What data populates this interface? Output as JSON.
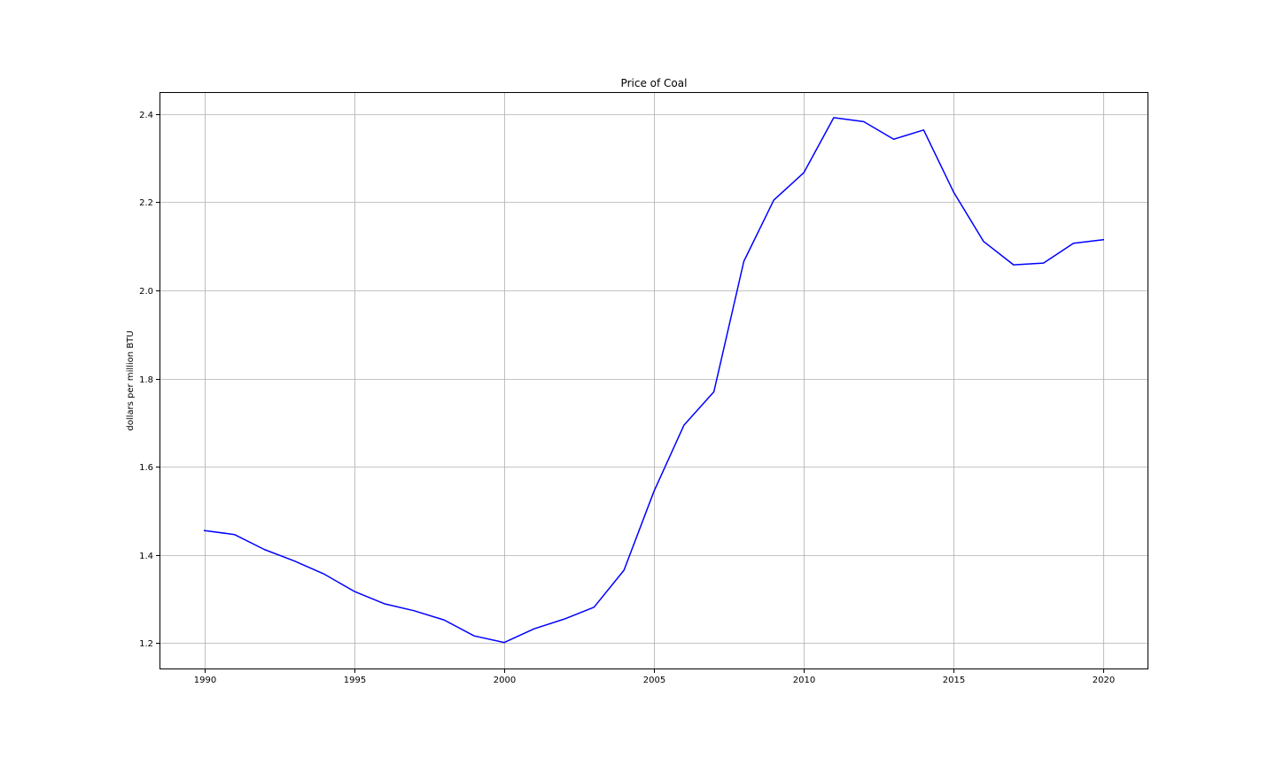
{
  "chart_data": {
    "type": "line",
    "title": "Price of Coal",
    "xlabel": "",
    "ylabel": "dollars per million BTU",
    "xlim": [
      1988.5,
      2021.5
    ],
    "ylim": [
      1.14,
      2.45
    ],
    "x_ticks": [
      1990,
      1995,
      2000,
      2005,
      2010,
      2015,
      2020
    ],
    "y_ticks": [
      1.2,
      1.4,
      1.6,
      1.8,
      2.0,
      2.2,
      2.4
    ],
    "y_tick_labels": [
      "1.2",
      "1.4",
      "1.6",
      "1.8",
      "2.0",
      "2.2",
      "2.4"
    ],
    "grid": true,
    "series": [
      {
        "name": "",
        "color": "#0000ff",
        "x": [
          1990,
          1991,
          1992,
          1993,
          1994,
          1995,
          1996,
          1997,
          1998,
          1999,
          2000,
          2001,
          2002,
          2003,
          2004,
          2005,
          2006,
          2007,
          2008,
          2009,
          2010,
          2011,
          2012,
          2013,
          2014,
          2015,
          2016,
          2017,
          2018,
          2019,
          2020
        ],
        "y": [
          1.455,
          1.446,
          1.412,
          1.386,
          1.356,
          1.317,
          1.289,
          1.273,
          1.252,
          1.216,
          1.201,
          1.232,
          1.254,
          1.281,
          1.365,
          1.544,
          1.694,
          1.77,
          2.066,
          2.205,
          2.267,
          2.392,
          2.383,
          2.343,
          2.364,
          2.223,
          2.111,
          2.058,
          2.062,
          2.107,
          2.115
        ]
      }
    ]
  }
}
